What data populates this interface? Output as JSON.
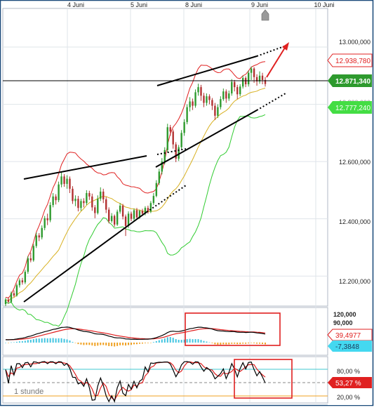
{
  "chart_data": [
    {
      "type": "candlestick",
      "panel": "price",
      "timeframe_label": "1 stunde",
      "date_labels": [
        "4 Juni",
        "5 Juni",
        "8 Juni",
        "9 Juni",
        "10 Juni"
      ],
      "y_ticks": [
        "13.000,000",
        "12.800,000",
        "12.600,000",
        "12.400,000",
        "12.200,000"
      ],
      "y_tick_values": [
        13000,
        12800,
        12600,
        12400,
        12200
      ],
      "ylim": [
        12100,
        13130
      ],
      "current_price_label": "12.871,340",
      "current_price": 12871.34,
      "upper_band_label": "12.938,780",
      "upper_band": 12938.78,
      "lower_band_label": "12.777,240",
      "lower_band": 12777.24,
      "colors": {
        "up": "#2e9a2e",
        "down": "#b23030",
        "upper_band": "#e02020",
        "middle_band": "#d8b020",
        "lower_band": "#32cc32",
        "current_box": "#2e9a2e",
        "upper_box": "#e02020",
        "lower_box": "#44dd44"
      },
      "candles": [
        [
          12102,
          12118,
          12095,
          12124
        ],
        [
          12118,
          12110,
          12104,
          12126
        ],
        [
          12110,
          12140,
          12105,
          12146
        ],
        [
          12140,
          12132,
          12126,
          12150
        ],
        [
          12132,
          12168,
          12128,
          12174
        ],
        [
          12168,
          12185,
          12160,
          12192
        ],
        [
          12185,
          12178,
          12170,
          12194
        ],
        [
          12178,
          12215,
          12172,
          12222
        ],
        [
          12215,
          12262,
          12208,
          12270
        ],
        [
          12262,
          12255,
          12248,
          12282
        ],
        [
          12255,
          12305,
          12250,
          12312
        ],
        [
          12305,
          12342,
          12298,
          12352
        ],
        [
          12342,
          12335,
          12322,
          12350
        ],
        [
          12335,
          12368,
          12328,
          12377
        ],
        [
          12368,
          12402,
          12360,
          12410
        ],
        [
          12402,
          12395,
          12378,
          12418
        ],
        [
          12395,
          12448,
          12388,
          12458
        ],
        [
          12448,
          12478,
          12440,
          12490
        ],
        [
          12478,
          12465,
          12450,
          12486
        ],
        [
          12465,
          12520,
          12458,
          12530
        ],
        [
          12520,
          12548,
          12510,
          12562
        ],
        [
          12548,
          12522,
          12512,
          12556
        ],
        [
          12522,
          12540,
          12505,
          12552
        ],
        [
          12540,
          12505,
          12490,
          12548
        ],
        [
          12505,
          12462,
          12452,
          12514
        ],
        [
          12462,
          12470,
          12444,
          12482
        ],
        [
          12470,
          12438,
          12426,
          12480
        ],
        [
          12438,
          12462,
          12428,
          12470
        ],
        [
          12462,
          12455,
          12440,
          12472
        ],
        [
          12455,
          12490,
          12448,
          12500
        ],
        [
          12490,
          12478,
          12466,
          12498
        ],
        [
          12478,
          12440,
          12428,
          12488
        ],
        [
          12440,
          12420,
          12402,
          12448
        ],
        [
          12420,
          12470,
          12415,
          12482
        ],
        [
          12470,
          12495,
          12462,
          12510
        ],
        [
          12495,
          12468,
          12455,
          12505
        ],
        [
          12468,
          12432,
          12420,
          12476
        ],
        [
          12432,
          12392,
          12384,
          12440
        ],
        [
          12392,
          12410,
          12386,
          12420
        ],
        [
          12410,
          12380,
          12372,
          12415
        ],
        [
          12380,
          12425,
          12375,
          12432
        ],
        [
          12425,
          12446,
          12418,
          12455
        ],
        [
          12446,
          12408,
          12398,
          12452
        ],
        [
          12408,
          12375,
          12340,
          12415
        ],
        [
          12375,
          12418,
          12368,
          12426
        ],
        [
          12418,
          12400,
          12392,
          12425
        ],
        [
          12400,
          12430,
          12394,
          12436
        ],
        [
          12430,
          12405,
          12398,
          12438
        ],
        [
          12405,
          12428,
          12400,
          12432
        ],
        [
          12428,
          12418,
          12410,
          12435
        ],
        [
          12418,
          12438,
          12412,
          12444
        ],
        [
          12438,
          12425,
          12418,
          12446
        ],
        [
          12425,
          12455,
          12420,
          12462
        ],
        [
          12455,
          12480,
          12448,
          12490
        ],
        [
          12480,
          12525,
          12475,
          12535
        ],
        [
          12525,
          12565,
          12518,
          12575
        ],
        [
          12565,
          12600,
          12555,
          12612
        ],
        [
          12600,
          12640,
          12590,
          12650
        ],
        [
          12640,
          12720,
          12632,
          12732
        ],
        [
          12720,
          12705,
          12690,
          12728
        ],
        [
          12705,
          12660,
          12645,
          12712
        ],
        [
          12660,
          12610,
          12598,
          12668
        ],
        [
          12610,
          12650,
          12602,
          12658
        ],
        [
          12650,
          12700,
          12642,
          12710
        ],
        [
          12700,
          12738,
          12690,
          12748
        ],
        [
          12738,
          12790,
          12730,
          12800
        ],
        [
          12790,
          12810,
          12775,
          12825
        ],
        [
          12810,
          12795,
          12780,
          12820
        ],
        [
          12795,
          12842,
          12788,
          12852
        ],
        [
          12842,
          12860,
          12830,
          12872
        ],
        [
          12860,
          12830,
          12812,
          12868
        ],
        [
          12830,
          12805,
          12790,
          12840
        ],
        [
          12805,
          12828,
          12795,
          12838
        ],
        [
          12828,
          12815,
          12800,
          12835
        ],
        [
          12815,
          12795,
          12780,
          12822
        ],
        [
          12795,
          12760,
          12745,
          12805
        ],
        [
          12760,
          12790,
          12752,
          12800
        ],
        [
          12790,
          12818,
          12782,
          12828
        ],
        [
          12818,
          12845,
          12812,
          12855
        ],
        [
          12845,
          12820,
          12805,
          12852
        ],
        [
          12820,
          12838,
          12812,
          12848
        ],
        [
          12838,
          12878,
          12830,
          12888
        ],
        [
          12878,
          12860,
          12845,
          12885
        ],
        [
          12860,
          12835,
          12818,
          12868
        ],
        [
          12835,
          12862,
          12828,
          12870
        ],
        [
          12862,
          12892,
          12855,
          12900
        ],
        [
          12892,
          12870,
          12860,
          12898
        ],
        [
          12870,
          12910,
          12862,
          12918
        ],
        [
          12910,
          12925,
          12885,
          12932
        ],
        [
          12925,
          12895,
          12875,
          12930
        ],
        [
          12895,
          12880,
          12865,
          12905
        ],
        [
          12880,
          12900,
          12872,
          12915
        ],
        [
          12900,
          12885,
          12870,
          12910
        ],
        [
          12885,
          12871,
          12862,
          12895
        ]
      ]
    },
    {
      "type": "line",
      "panel": "macd",
      "y_ticks": [
        "120,000",
        "90,000"
      ],
      "y_tick_values": [
        120,
        90
      ],
      "value_label": "39,4977",
      "value": 39.4977,
      "signal_label": "-7,3848",
      "signal": -7.3848,
      "colors": {
        "macd_line": "#000000",
        "signal_line": "#e02020",
        "hist_pos": "#40c4e0",
        "hist_neg": "#f0a020",
        "value_box": "#e02020",
        "signal_box": "#44d8f0"
      }
    },
    {
      "type": "line",
      "panel": "stochastic",
      "y_ticks": [
        "80,00 %",
        "20,00 %"
      ],
      "y_tick_values": [
        80,
        20
      ],
      "value_label": "53,27 %",
      "value": 53.27,
      "colors": {
        "k_line": "#000000",
        "d_line": "#e02020",
        "upper_level": "#40c8d0",
        "lower_level": "#f0a020",
        "value_box": "#e02020"
      }
    }
  ]
}
